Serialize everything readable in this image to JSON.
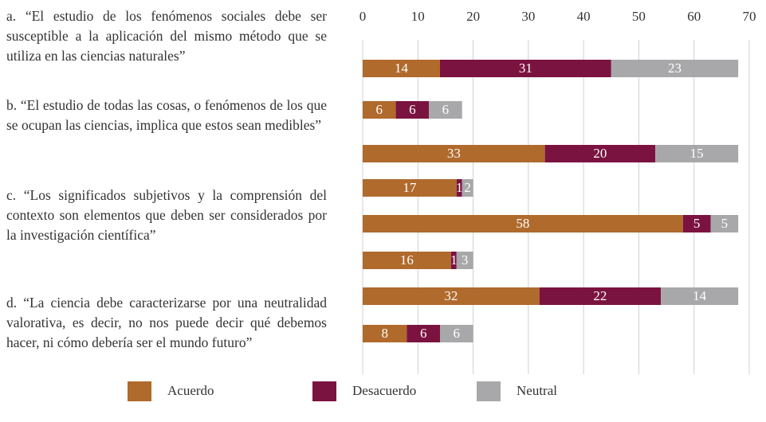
{
  "chart_data": {
    "type": "stacked_barh",
    "statements": [
      "a. “El estudio de los fenómenos sociales debe ser susceptible a la aplicación del mismo método que se utiliza en las ciencias naturales”",
      "b. “El estudio de todas las cosas, o fenómenos de los que se ocupan las ciencias, implica que estos sean medibles”",
      "c. “Los significados subjetivos y la comprensión del contexto son elementos que deben ser considerados por la investigación científica”",
      "d. “La ciencia debe caracterizarse por una neutralidad valorativa, es decir, no nos puede decir qué debemos hacer, ni cómo debería ser el mundo futuro”"
    ],
    "series": [
      {
        "name": "Acuerdo",
        "color": "#b06a2c",
        "values": [
          14,
          6,
          33,
          17,
          58,
          16,
          32,
          8
        ]
      },
      {
        "name": "Desacuerdo",
        "color": "#7b1340",
        "values": [
          31,
          6,
          20,
          1,
          5,
          1,
          22,
          6
        ]
      },
      {
        "name": "Neutral",
        "color": "#a8a8aa",
        "values": [
          23,
          6,
          15,
          2,
          5,
          3,
          14,
          6
        ]
      }
    ],
    "xlim": [
      0,
      70
    ],
    "xticks": [
      0,
      10,
      20,
      30,
      40,
      50,
      60,
      70
    ],
    "grid": true,
    "legend": "bottom"
  }
}
